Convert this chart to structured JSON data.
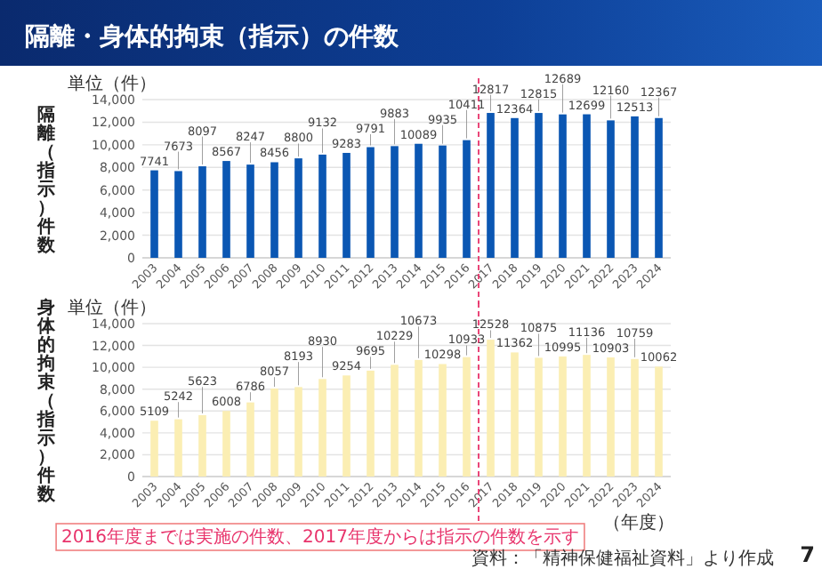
{
  "chart_data": [
    {
      "type": "bar",
      "title": "隔離・身体的拘束（指示）の件数",
      "ylabel": "隔離（指示）件数",
      "annotations": [
        "単位（件）"
      ],
      "x": [
        2003,
        2004,
        2005,
        2006,
        2007,
        2008,
        2009,
        2010,
        2011,
        2012,
        2013,
        2014,
        2015,
        2016,
        2017,
        2018,
        2019,
        2020,
        2021,
        2022,
        2023,
        2024
      ],
      "values": [
        7741,
        7673,
        8097,
        8567,
        8247,
        8456,
        8800,
        9132,
        9283,
        9791,
        9883,
        10089,
        9935,
        10411,
        12817,
        12364,
        12815,
        12689,
        12699,
        12160,
        12513,
        12367
      ],
      "color": "#0b57b3",
      "data_labels": true,
      "grid": "y",
      "xlim": [
        2002.5,
        2024.5
      ],
      "xticks": [
        2003,
        2004,
        2005,
        2006,
        2007,
        2008,
        2009,
        2010,
        2011,
        2012,
        2013,
        2014,
        2015,
        2016,
        2017,
        2018,
        2019,
        2020,
        2021,
        2022,
        2023,
        2024
      ],
      "ylim": [
        0,
        14000
      ],
      "yticks": [
        0,
        {
          "value": 2000,
          "label": "2,000"
        },
        {
          "value": 4000,
          "label": "4,000"
        },
        {
          "value": 6000,
          "label": "6,000"
        },
        {
          "value": 8000,
          "label": "8,000"
        },
        {
          "value": 10000,
          "label": "10,000"
        },
        {
          "value": 12000,
          "label": "12,000"
        },
        {
          "value": 14000,
          "label": "14,000"
        }
      ],
      "ref_lines": [
        {
          "axis": "x",
          "value": 2016.5,
          "color": "#e8336b",
          "line_style": "dashed"
        }
      ]
    },
    {
      "type": "bar",
      "ylabel": "身体的拘束（指示）件数",
      "xlabel": "（年度）",
      "annotations": [
        "単位（件）",
        "2016年度までは実施の件数、2017年度からは指示の件数を示す",
        "資料：「精神保健福祉資料」より作成",
        "7"
      ],
      "x": [
        2003,
        2004,
        2005,
        2006,
        2007,
        2008,
        2009,
        2010,
        2011,
        2012,
        2013,
        2014,
        2015,
        2016,
        2017,
        2018,
        2019,
        2020,
        2021,
        2022,
        2023,
        2024
      ],
      "values": [
        5109,
        5242,
        5623,
        6008,
        6786,
        8057,
        8193,
        8930,
        9254,
        9695,
        10229,
        10673,
        10298,
        10933,
        12528,
        11362,
        10875,
        10995,
        11136,
        10903,
        10759,
        10062
      ],
      "color": "#fbeeb3",
      "data_labels": true,
      "grid": "y",
      "xlim": [
        2002.5,
        2024.5
      ],
      "xticks": [
        2003,
        2004,
        2005,
        2006,
        2007,
        2008,
        2009,
        2010,
        2011,
        2012,
        2013,
        2014,
        2015,
        2016,
        2017,
        2018,
        2019,
        2020,
        2021,
        2022,
        2023,
        2024
      ],
      "ylim": [
        0,
        14000
      ],
      "yticks": [
        0,
        {
          "value": 2000,
          "label": "2,000"
        },
        {
          "value": 4000,
          "label": "4,000"
        },
        {
          "value": 6000,
          "label": "6,000"
        },
        {
          "value": 8000,
          "label": "8,000"
        },
        {
          "value": 10000,
          "label": "10,000"
        },
        {
          "value": 12000,
          "label": "12,000"
        },
        {
          "value": 14000,
          "label": "14,000"
        }
      ],
      "ref_lines": [
        {
          "axis": "x",
          "value": 2016.5,
          "color": "#e8336b",
          "line_style": "dashed"
        }
      ]
    }
  ]
}
